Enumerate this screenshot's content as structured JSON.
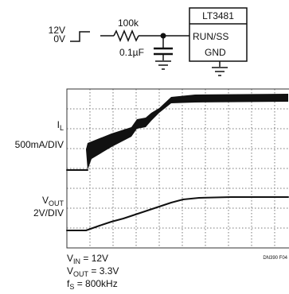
{
  "schematic": {
    "input_high": "12V",
    "input_low": "0V",
    "resistor": "100k",
    "capacitor": "0.1µF",
    "ic_name": "LT3481",
    "pin_run": "RUN/SS",
    "pin_gnd": "GND"
  },
  "scope": {
    "il_label_main": "I",
    "il_label_sub": "L",
    "il_scale": "500mA/DIV",
    "vout_label_main": "V",
    "vout_label_sub": "OUT",
    "vout_scale": "2V/DIV",
    "figure_id": "DN390 F04"
  },
  "conditions": {
    "vin_main": "V",
    "vin_sub": "IN",
    "vin_value": " = 12V",
    "vout_main": "V",
    "vout_sub": "OUT",
    "vout_value": " = 3.3V",
    "fs_main": "f",
    "fs_sub": "S",
    "fs_value": " = 800kHz"
  }
}
